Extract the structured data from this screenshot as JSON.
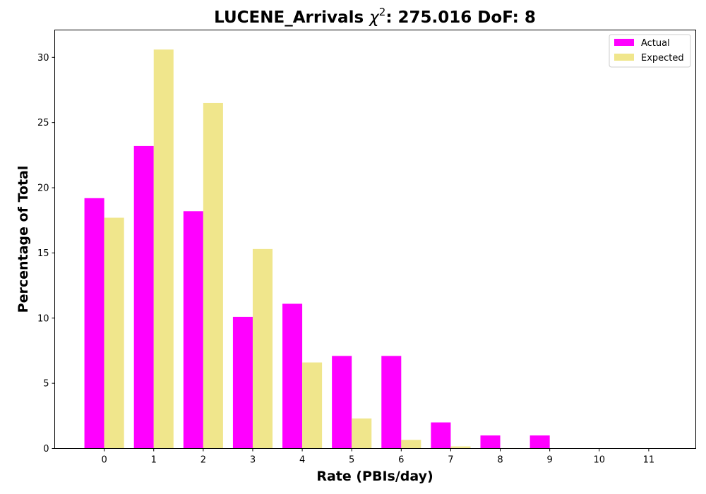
{
  "chart_data": {
    "type": "bar",
    "title": "LUCENE_Arrivals",
    "title_chi_symbol": "χ",
    "title_chi_exponent": "2",
    "title_stats": ": 275.016 DoF: 8",
    "xlabel": "Rate (PBIs/day)",
    "ylabel": "Percentage of Total",
    "categories": [
      "0",
      "1",
      "2",
      "3",
      "4",
      "5",
      "6",
      "7",
      "8",
      "9",
      "10",
      "11"
    ],
    "x_tick_labels": [
      "0",
      "1",
      "2",
      "3",
      "4",
      "5",
      "6",
      "7",
      "8",
      "9",
      "10",
      "11"
    ],
    "y_ticks": [
      0,
      5,
      10,
      15,
      20,
      25,
      30
    ],
    "y_tick_labels": [
      "0",
      "5",
      "10",
      "15",
      "20",
      "25",
      "30"
    ],
    "ylim": [
      0,
      32.1
    ],
    "xlim": [
      -1.0,
      11.95
    ],
    "grid": false,
    "legend_position": "top-right",
    "series": [
      {
        "name": "Actual",
        "color": "#ff00ff",
        "values": [
          19.2,
          23.2,
          18.2,
          10.1,
          11.1,
          7.1,
          7.1,
          2.0,
          1.0,
          1.0,
          0,
          0
        ]
      },
      {
        "name": "Expected",
        "color": "#f0e68c",
        "values": [
          17.7,
          30.6,
          26.5,
          15.3,
          6.6,
          2.3,
          0.66,
          0.16,
          0.03,
          0.005,
          0,
          0
        ]
      }
    ]
  }
}
